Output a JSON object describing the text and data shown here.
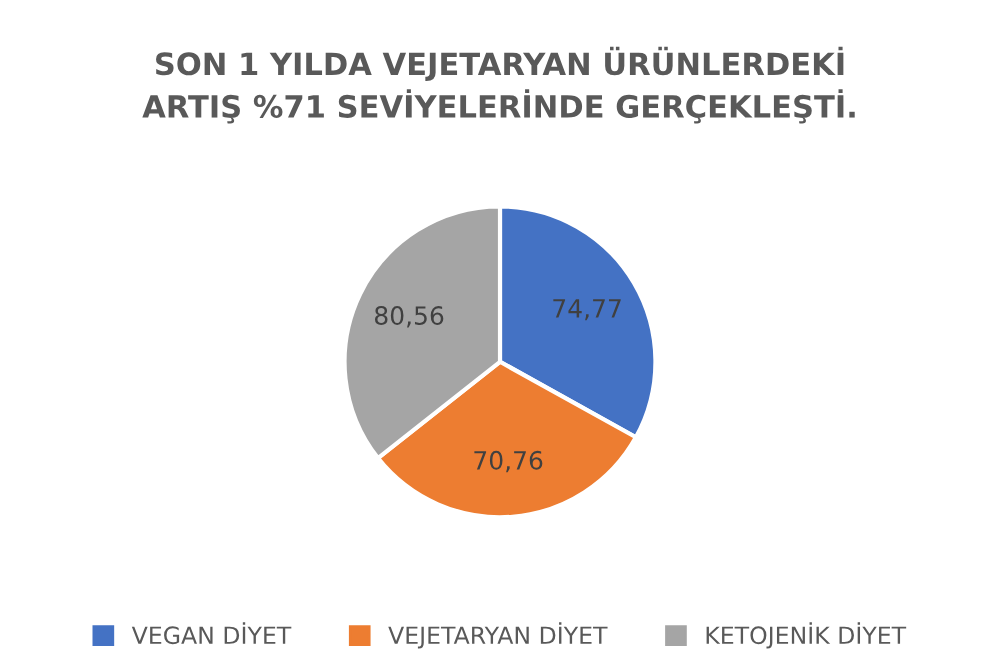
{
  "chart_data": {
    "type": "pie",
    "title": "SON 1 YILDA VEJETARYAN ÜRÜNLERDEKİ\nARTIŞ %71 SEVİYELERİNDE GERÇEKLEŞTİ.",
    "categories": [
      "VEGAN DİYET",
      "VEJETARYAN DİYET",
      "KETOJENİK DİYET"
    ],
    "values": [
      74.77,
      70.76,
      80.56
    ],
    "value_labels": [
      "74,77",
      "70,76",
      "80,56"
    ],
    "colors": [
      "#4472c4",
      "#ed7d31",
      "#a5a5a5"
    ],
    "legend": "bottom"
  }
}
